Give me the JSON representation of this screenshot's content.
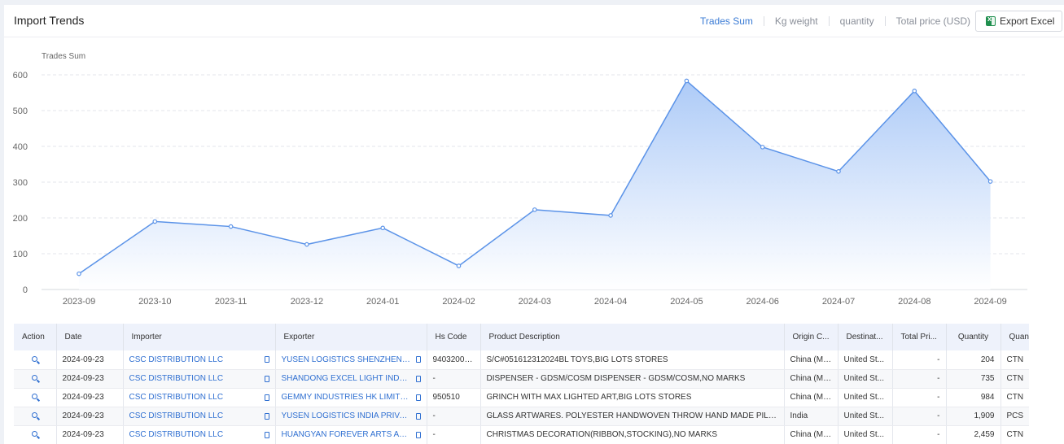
{
  "header": {
    "title": "Import Trends",
    "tabs": [
      "Trades Sum",
      "Kg weight",
      "quantity",
      "Total price (USD)"
    ],
    "active_tab": "Trades Sum",
    "export_label": "Export Excel"
  },
  "chart_data": {
    "type": "area",
    "ylabel": "Trades Sum",
    "ylim": [
      0,
      600
    ],
    "yticks": [
      0,
      100,
      200,
      300,
      400,
      500,
      600
    ],
    "categories": [
      "2023-09",
      "2023-10",
      "2023-11",
      "2023-12",
      "2024-01",
      "2024-02",
      "2024-03",
      "2024-04",
      "2024-05",
      "2024-06",
      "2024-07",
      "2024-08",
      "2024-09"
    ],
    "series": [
      {
        "values": [
          44,
          190,
          176,
          126,
          172,
          66,
          223,
          207,
          583,
          398,
          330,
          555,
          302
        ]
      }
    ],
    "grid": true,
    "colors": {
      "line": "#5b93e8",
      "fill_top": "#a9c8f7",
      "fill_bottom": "#ffffff"
    }
  },
  "table": {
    "columns": [
      "Action",
      "Date",
      "Importer",
      "Exporter",
      "Hs Code",
      "Product Description",
      "Origin C...",
      "Destinat...",
      "Total Pri...",
      "Quantity",
      "Quant"
    ],
    "rows": [
      [
        "2024-09-23",
        "CSC DISTRIBUTION LLC",
        "YUSEN LOGISTICS SHENZHEN C...",
        "94032000...",
        "S/C#051612312024BL TOYS,BIG LOTS STORES",
        "China (Ma...",
        "United St...",
        "-",
        "204",
        "CTN"
      ],
      [
        "2024-09-23",
        "CSC DISTRIBUTION LLC",
        "SHANDONG EXCEL LIGHT INDUS...",
        "-",
        "DISPENSER - GDSM/COSM DISPENSER - GDSM/COSM,NO MARKS",
        "China (Ma...",
        "United St...",
        "-",
        "735",
        "CTN"
      ],
      [
        "2024-09-23",
        "CSC DISTRIBUTION LLC",
        "GEMMY INDUSTRIES HK LIMITED",
        "950510",
        "GRINCH WITH MAX LIGHTED ART,BIG LOTS STORES",
        "China (Ma...",
        "United St...",
        "-",
        "984",
        "CTN"
      ],
      [
        "2024-09-23",
        "CSC DISTRIBUTION LLC",
        "YUSEN LOGISTICS INDIA PRIVAT...",
        "-",
        "GLASS ARTWARES. POLYESTER HANDWOVEN THROW HAND MADE PILLOW. C...",
        "India",
        "United St...",
        "-",
        "1,909",
        "PCS"
      ],
      [
        "2024-09-23",
        "CSC DISTRIBUTION LLC",
        "HUANGYAN FOREVER ARTS AND...",
        "-",
        "CHRISTMAS DECORATION(RIBBON,STOCKING),NO MARKS",
        "China (Ma...",
        "United St...",
        "-",
        "2,459",
        "CTN"
      ]
    ]
  }
}
